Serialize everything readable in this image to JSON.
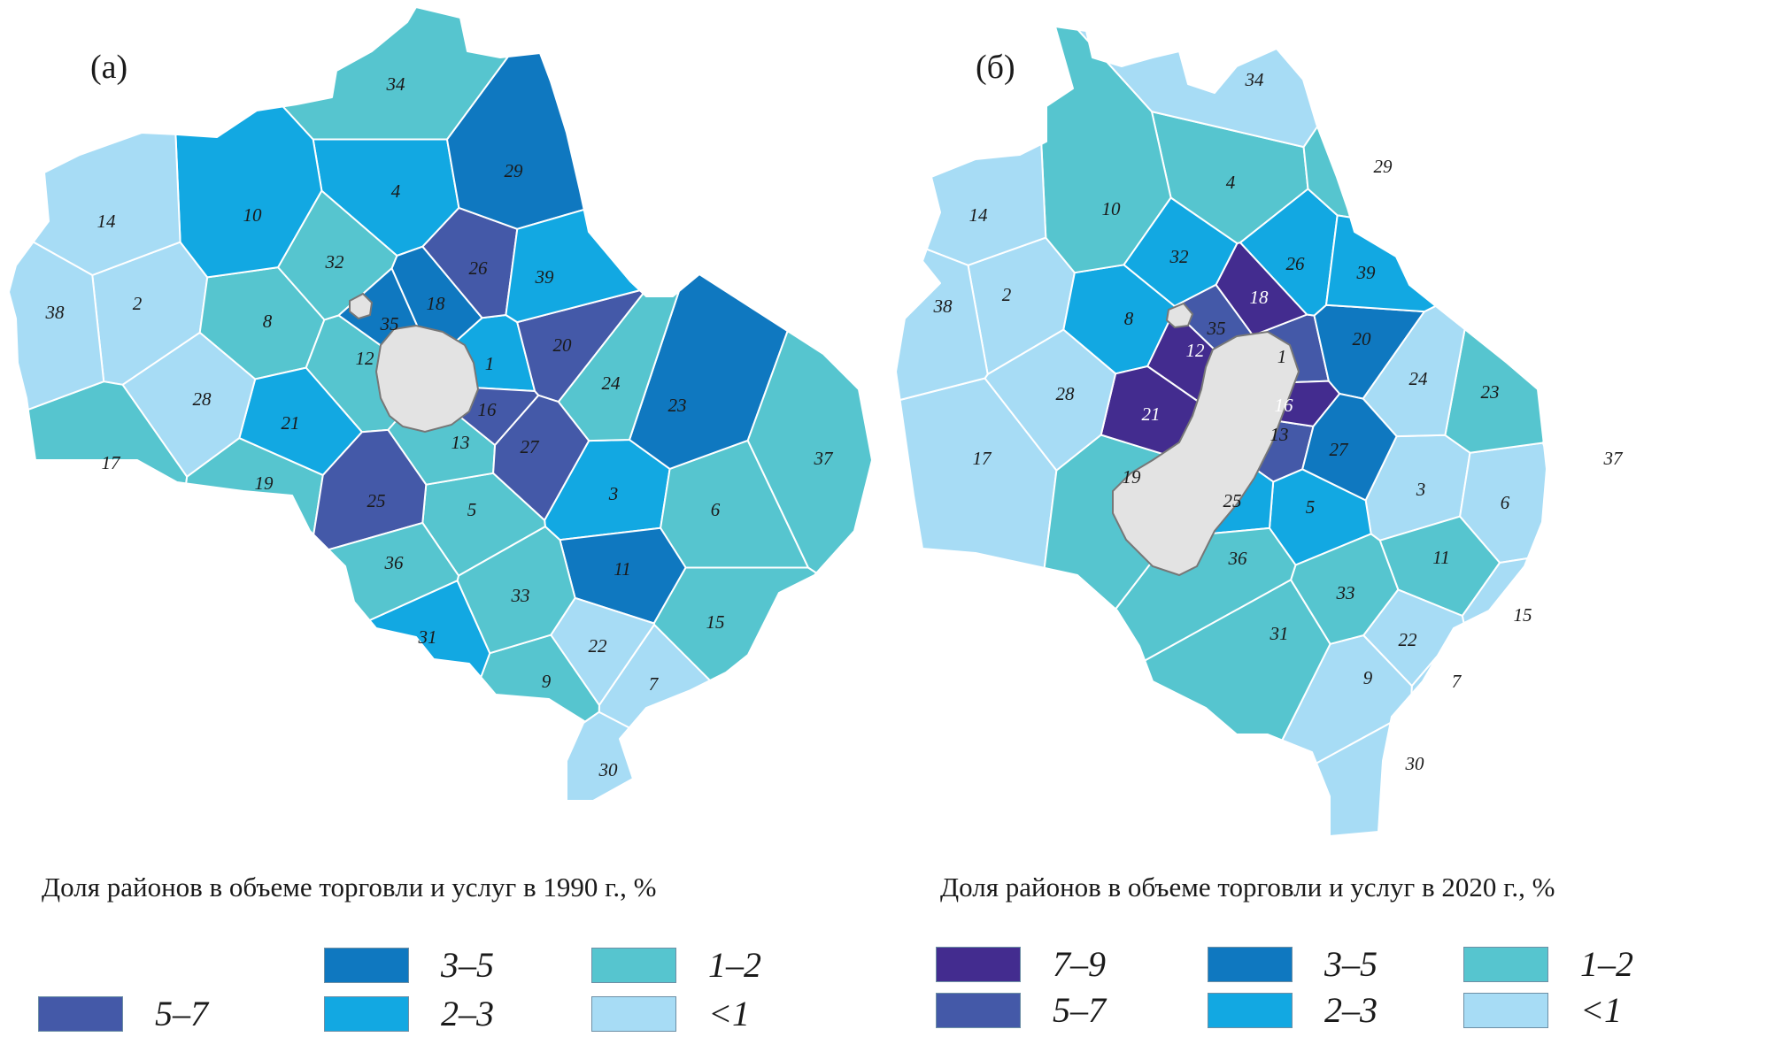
{
  "colors": {
    "c7_9": "#432c8f",
    "c5_7": "#4459a8",
    "c3_5": "#0f78c0",
    "c2_3": "#12a8e2",
    "c1_2": "#56c5cf",
    "clt1": "#a7dcf5",
    "moscow": "#e3e3e3"
  },
  "map_a": {
    "panel_label": "(а)",
    "caption": "Доля районов в объеме торговли и услуг в 1990 г., %",
    "legend": [
      {
        "label": "3–5",
        "color": "#0f78c0"
      },
      {
        "label": "1–2",
        "color": "#56c5cf"
      },
      {
        "label": "5–7",
        "color": "#4459a8"
      },
      {
        "label": "2–3",
        "color": "#12a8e2"
      },
      {
        "label": "<1",
        "color": "#a7dcf5"
      }
    ],
    "districts": {
      "34": "c1_2",
      "29": "c3_5",
      "4": "c2_3",
      "10": "c2_3",
      "14": "clt1",
      "32": "c1_2",
      "26": "c5_7",
      "39": "c2_3",
      "38": "clt1",
      "2": "clt1",
      "8": "c1_2",
      "18": "c3_5",
      "35": "c3_5",
      "20": "c5_7",
      "12": "c1_2",
      "1": "c2_3",
      "24": "c1_2",
      "23": "c3_5",
      "28": "clt1",
      "21": "c2_3",
      "16": "c5_7",
      "17": "c1_2",
      "13": "c1_2",
      "27": "c5_7",
      "37": "c1_2",
      "19": "c1_2",
      "25": "c5_7",
      "5": "c1_2",
      "3": "c2_3",
      "6": "c1_2",
      "36": "c1_2",
      "11": "c3_5",
      "33": "c1_2",
      "31": "c2_3",
      "15": "c1_2",
      "22": "clt1",
      "9": "c1_2",
      "7": "clt1",
      "30": "clt1"
    }
  },
  "map_b": {
    "panel_label": "(б)",
    "caption": "Доля районов в объеме торговли и услуг в 2020 г., %",
    "legend": [
      {
        "label": "7–9",
        "color": "#432c8f"
      },
      {
        "label": "3–5",
        "color": "#0f78c0"
      },
      {
        "label": "1–2",
        "color": "#56c5cf"
      },
      {
        "label": "5–7",
        "color": "#4459a8"
      },
      {
        "label": "2–3",
        "color": "#12a8e2"
      },
      {
        "label": "<1",
        "color": "#a7dcf5"
      }
    ],
    "districts": {
      "34": "clt1",
      "29": "c1_2",
      "4": "c1_2",
      "10": "c1_2",
      "14": "clt1",
      "32": "c2_3",
      "26": "c2_3",
      "39": "c2_3",
      "38": "clt1",
      "2": "clt1",
      "8": "c2_3",
      "18": "c7_9",
      "35": "c5_7",
      "20": "c3_5",
      "12": "c7_9",
      "1": "c5_7",
      "24": "clt1",
      "23": "c1_2",
      "28": "clt1",
      "21": "c7_9",
      "16": "c7_9",
      "17": "clt1",
      "13": "c5_7",
      "27": "c3_5",
      "37": "clt1",
      "19": "c1_2",
      "25": "c2_3",
      "5": "c2_3",
      "3": "clt1",
      "6": "clt1",
      "36": "c1_2",
      "11": "c1_2",
      "33": "c1_2",
      "31": "c1_2",
      "15": "clt1",
      "22": "clt1",
      "9": "clt1",
      "7": "clt1",
      "30": "clt1"
    }
  }
}
